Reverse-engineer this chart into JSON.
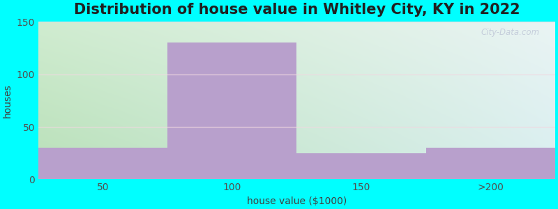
{
  "title": "Distribution of house value in Whitley City, KY in 2022",
  "xlabel": "house value ($1000)",
  "ylabel": "houses",
  "categories": [
    "50",
    "100",
    "150",
    ">200"
  ],
  "values": [
    30,
    130,
    25,
    30
  ],
  "bar_color": "#b8a0cc",
  "ylim": [
    0,
    150
  ],
  "yticks": [
    0,
    50,
    100,
    150
  ],
  "bg_color": "#00FFFF",
  "plot_bg_top_left": "#d8edd8",
  "plot_bg_top_right": "#e8f4f0",
  "plot_bg_bottom_right": "#ffffff",
  "title_fontsize": 15,
  "axis_label_fontsize": 10,
  "tick_fontsize": 10,
  "watermark": "City-Data.com"
}
